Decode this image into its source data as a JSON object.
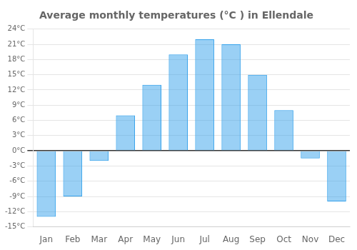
{
  "chart_data": {
    "type": "bar",
    "title": "Average monthly temperatures (°C ) in Ellendale",
    "categories": [
      "Jan",
      "Feb",
      "Mar",
      "Apr",
      "May",
      "Jun",
      "Jul",
      "Aug",
      "Sep",
      "Oct",
      "Nov",
      "Dec"
    ],
    "values": [
      -13,
      -9,
      -2,
      7,
      13,
      19,
      22,
      21,
      15,
      8,
      -1.5,
      -10
    ],
    "ylim": [
      -15,
      24
    ],
    "yticks": [
      {
        "value": -15,
        "label": "-15°C"
      },
      {
        "value": -12,
        "label": "-12°C"
      },
      {
        "value": -9,
        "label": "-9°C"
      },
      {
        "value": -6,
        "label": "-6°C"
      },
      {
        "value": -3,
        "label": "-3°C"
      },
      {
        "value": 0,
        "label": "0°C"
      },
      {
        "value": 3,
        "label": "3°C"
      },
      {
        "value": 6,
        "label": "6°C"
      },
      {
        "value": 9,
        "label": "9°C"
      },
      {
        "value": 12,
        "label": "12°C"
      },
      {
        "value": 15,
        "label": "15°C"
      },
      {
        "value": 18,
        "label": "18°C"
      },
      {
        "value": 21,
        "label": "21°C"
      },
      {
        "value": 24,
        "label": "24°C"
      }
    ],
    "grid": true
  }
}
